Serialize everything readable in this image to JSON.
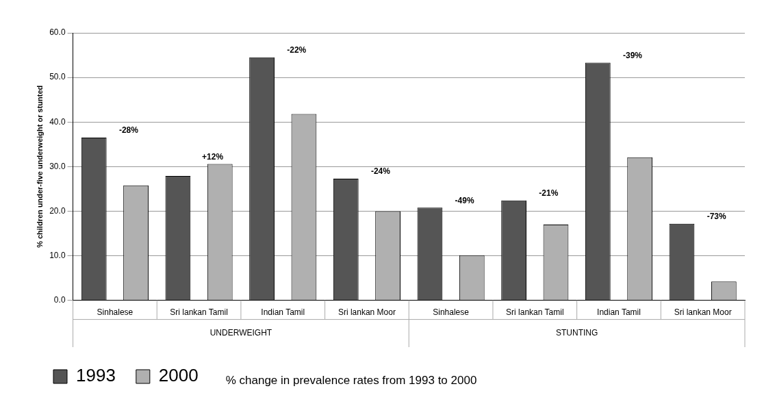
{
  "chart_data": {
    "type": "bar",
    "ylabel": "% children under-five underweight or stunted",
    "categories": [
      "Sinhalese",
      "Sri lankan Tamil",
      "Indian Tamil",
      "Sri lankan Moor",
      "Sinhalese",
      "Sri lankan Tamil",
      "Indian Tamil",
      "Sri lankan Moor"
    ],
    "series": [
      {
        "name": "1993",
        "color": "#555555",
        "values": [
          36.5,
          27.9,
          54.5,
          27.3,
          20.8,
          22.4,
          53.3,
          17.2
        ]
      },
      {
        "name": "2000",
        "color": "#b0b0b0",
        "values": [
          25.8,
          30.6,
          41.8,
          20.0,
          10.1,
          17.0,
          32.1,
          4.2
        ]
      }
    ],
    "ylim": [
      0,
      60
    ],
    "yticks": [
      {
        "value": 0,
        "label": "0.0"
      },
      {
        "value": 10,
        "label": "10.0"
      },
      {
        "value": 20,
        "label": "20.0"
      },
      {
        "value": 30,
        "label": "30.0"
      },
      {
        "value": 40,
        "label": "40.0"
      },
      {
        "value": 50,
        "label": "50.0"
      },
      {
        "value": 60,
        "label": "60.0"
      }
    ],
    "grid": "y",
    "legend": "bottom left",
    "annotations": [
      "-28%",
      "+12%",
      "-22%",
      "-24%",
      "-49%",
      "-21%",
      "-39%",
      "-73%",
      "UNDERWEIGHT",
      "STUNTING",
      "% change in prevalence rates from 1993 to 2000"
    ]
  }
}
